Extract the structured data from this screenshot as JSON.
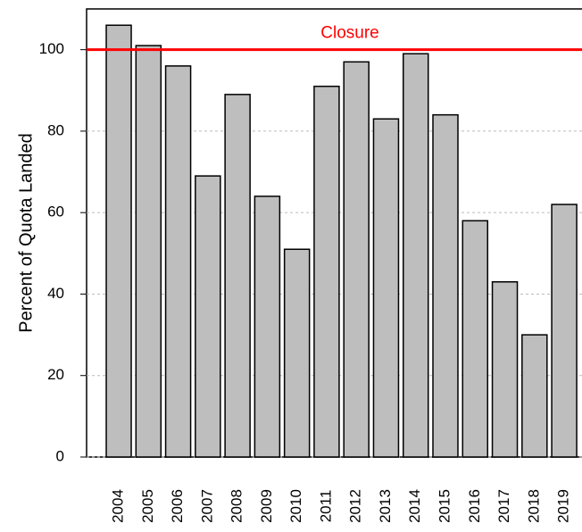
{
  "chart_data": {
    "type": "bar",
    "ylabel": "Percent of Quota Landed",
    "categories": [
      "2004",
      "2005",
      "2006",
      "2007",
      "2008",
      "2009",
      "2010",
      "2011",
      "2012",
      "2013",
      "2014",
      "2015",
      "2016",
      "2017",
      "2018",
      "2019"
    ],
    "values": [
      106,
      101,
      96,
      69,
      89,
      64,
      51,
      91,
      97,
      83,
      99,
      84,
      58,
      43,
      30,
      62
    ],
    "color": "#bebebe",
    "ylim": [
      0,
      110
    ],
    "yticks": [
      0,
      20,
      40,
      60,
      80,
      100
    ],
    "grid": true,
    "reference_line": {
      "value": 100,
      "label": "Closure",
      "color": "#ff0000"
    }
  }
}
